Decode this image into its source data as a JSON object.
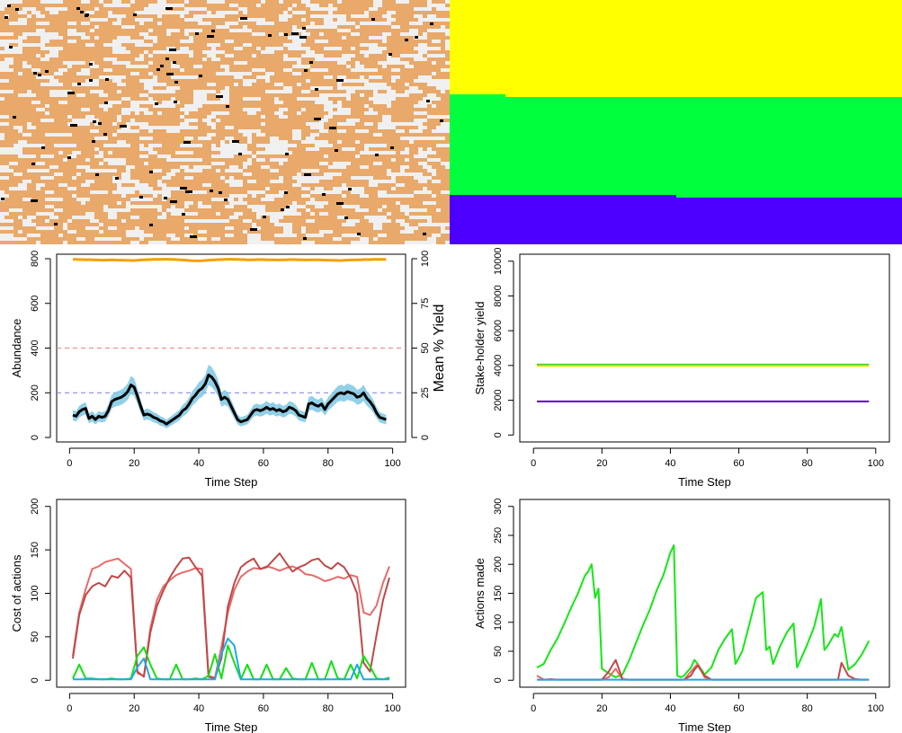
{
  "colors": {
    "land_tan": "#E8A96A",
    "land_white": "#F0F0F0",
    "resource_black": "#000000",
    "owner1": "#FFFF00",
    "owner2": "#00FF3C",
    "owner3": "#4B00FF",
    "abundance_line": "#000000",
    "abundance_ci": "#7EC8E3",
    "yield_line": "#F5A000",
    "upper_threshold": "#F08080",
    "lower_threshold": "#7A7AE0"
  },
  "chart_data": [
    {
      "type": "line",
      "panel": "population",
      "xlabel": "Time Step",
      "ylabel": "Abundance",
      "ylabel_right": "Mean % Yield",
      "xlim": [
        -4,
        104
      ],
      "ylim": [
        -20,
        820
      ],
      "ylim_right": [
        -2.5,
        102.5
      ],
      "xticks": [
        0,
        20,
        40,
        60,
        80,
        100
      ],
      "yticks": [
        0,
        200,
        400,
        600,
        800
      ],
      "yticks_right": [
        0,
        25,
        50,
        75,
        100
      ],
      "hlines": [
        {
          "y": 400,
          "color": "#F08080",
          "style": "dashed"
        },
        {
          "y": 200,
          "color": "#7A7AE0",
          "style": "dashed"
        }
      ],
      "x": [
        1,
        2,
        3,
        4,
        5,
        6,
        7,
        8,
        9,
        10,
        11,
        12,
        13,
        14,
        15,
        16,
        17,
        18,
        19,
        20,
        21,
        22,
        23,
        24,
        25,
        26,
        27,
        28,
        29,
        30,
        31,
        32,
        33,
        34,
        35,
        36,
        37,
        38,
        39,
        40,
        41,
        42,
        43,
        44,
        45,
        46,
        47,
        48,
        49,
        50,
        51,
        52,
        53,
        54,
        55,
        56,
        57,
        58,
        59,
        60,
        61,
        62,
        63,
        64,
        65,
        66,
        67,
        68,
        69,
        70,
        71,
        72,
        73,
        74,
        75,
        76,
        77,
        78,
        79,
        80,
        81,
        82,
        83,
        84,
        85,
        86,
        87,
        88,
        89,
        90,
        91,
        92,
        93,
        94,
        95,
        96,
        97,
        98
      ],
      "series": [
        {
          "name": "Abundance",
          "axis": "left",
          "color": "#000000",
          "values": [
            100,
            95,
            115,
            125,
            130,
            85,
            95,
            80,
            95,
            90,
            95,
            120,
            160,
            170,
            175,
            180,
            190,
            205,
            235,
            225,
            185,
            140,
            100,
            105,
            100,
            90,
            85,
            75,
            70,
            60,
            70,
            80,
            90,
            100,
            120,
            130,
            150,
            175,
            190,
            210,
            220,
            240,
            280,
            270,
            250,
            220,
            170,
            180,
            170,
            140,
            110,
            80,
            70,
            75,
            80,
            100,
            120,
            125,
            120,
            125,
            135,
            125,
            130,
            120,
            125,
            115,
            120,
            135,
            130,
            120,
            100,
            95,
            90,
            150,
            155,
            145,
            140,
            150,
            125,
            150,
            165,
            180,
            195,
            200,
            195,
            205,
            200,
            195,
            180,
            185,
            200,
            175,
            160,
            140,
            110,
            90,
            85,
            80
          ]
        },
        {
          "name": "Mean % Yield",
          "axis": "right",
          "color": "#F5A000",
          "values": [
            99.6,
            99.6,
            99.5,
            99.5,
            99.4,
            99.5,
            99.4,
            99.3,
            99.3,
            99.2,
            99.2,
            99.3,
            99.4,
            99.3,
            99.2,
            99.2,
            99.1,
            99.1,
            99.0,
            99.0,
            99.1,
            99.3,
            99.4,
            99.5,
            99.5,
            99.6,
            99.6,
            99.6,
            99.7,
            99.7,
            99.6,
            99.6,
            99.5,
            99.4,
            99.3,
            99.2,
            99.0,
            98.9,
            98.8,
            98.8,
            98.9,
            99.0,
            99.2,
            99.3,
            99.4,
            99.5,
            99.5,
            99.6,
            99.7,
            99.7,
            99.6,
            99.6,
            99.5,
            99.5,
            99.4,
            99.4,
            99.4,
            99.5,
            99.5,
            99.5,
            99.4,
            99.4,
            99.4,
            99.3,
            99.3,
            99.4,
            99.4,
            99.5,
            99.5,
            99.5,
            99.4,
            99.4,
            99.3,
            99.3,
            99.4,
            99.4,
            99.4,
            99.3,
            99.2,
            99.2,
            99.1,
            99.1,
            99.0,
            99.0,
            99.1,
            99.2,
            99.3,
            99.3,
            99.4,
            99.4,
            99.5,
            99.5,
            99.5,
            99.6,
            99.6,
            99.6,
            99.6,
            99.6
          ]
        }
      ]
    },
    {
      "type": "line",
      "panel": "stakeholder_yield",
      "xlabel": "Time Step",
      "ylabel": "Stake-holder yield",
      "xlim": [
        -4,
        104
      ],
      "ylim": [
        -400,
        10400
      ],
      "xticks": [
        0,
        20,
        40,
        60,
        80,
        100
      ],
      "yticks": [
        0,
        2000,
        4000,
        6000,
        8000,
        10000
      ],
      "x": [
        1,
        98
      ],
      "series": [
        {
          "name": "",
          "color": "#2ED12E",
          "values": [
            4050,
            4050
          ]
        },
        {
          "name": "",
          "color": "#E0E000",
          "values": [
            3980,
            3980
          ]
        },
        {
          "name": "",
          "color": "#5A10C8",
          "values": [
            1930,
            1930
          ]
        }
      ]
    },
    {
      "type": "line",
      "panel": "cost_of_actions",
      "xlabel": "Time Step",
      "ylabel": "Cost of actions",
      "xlim": [
        -4,
        104
      ],
      "ylim": [
        -8,
        208
      ],
      "xticks": [
        0,
        20,
        40,
        60,
        80,
        100
      ],
      "yticks": [
        0,
        50,
        100,
        150,
        200
      ],
      "x": [
        1,
        3,
        5,
        7,
        9,
        11,
        13,
        15,
        17,
        19,
        21,
        23,
        25,
        27,
        29,
        31,
        33,
        35,
        37,
        39,
        41,
        43,
        45,
        47,
        49,
        51,
        53,
        55,
        57,
        59,
        61,
        63,
        65,
        67,
        69,
        71,
        73,
        75,
        77,
        79,
        81,
        83,
        85,
        87,
        89,
        91,
        93,
        95,
        97,
        99
      ],
      "series": [
        {
          "name": "",
          "color": "#E86A6A",
          "values": [
            28,
            78,
            105,
            128,
            131,
            136,
            138,
            140,
            134,
            128,
            8,
            5,
            60,
            92,
            108,
            115,
            121,
            124,
            126,
            129,
            128,
            5,
            3,
            38,
            78,
            104,
            119,
            125,
            129,
            128,
            131,
            129,
            126,
            129,
            131,
            128,
            122,
            121,
            118,
            114,
            116,
            119,
            117,
            121,
            119,
            78,
            75,
            86,
            112,
            131
          ]
        },
        {
          "name": "",
          "color": "#C04848",
          "values": [
            25,
            75,
            98,
            108,
            112,
            108,
            120,
            118,
            126,
            118,
            10,
            4,
            55,
            85,
            103,
            118,
            130,
            140,
            141,
            130,
            120,
            4,
            2,
            25,
            85,
            112,
            130,
            136,
            140,
            128,
            130,
            138,
            146,
            135,
            125,
            130,
            133,
            138,
            140,
            132,
            128,
            135,
            130,
            118,
            100,
            20,
            10,
            52,
            92,
            118
          ]
        },
        {
          "name": "",
          "color": "#14E014",
          "values": [
            2,
            18,
            2,
            2,
            1,
            1,
            2,
            1,
            1,
            2,
            28,
            38,
            18,
            2,
            1,
            1,
            18,
            1,
            1,
            2,
            1,
            5,
            30,
            2,
            40,
            20,
            1,
            18,
            1,
            1,
            18,
            1,
            1,
            14,
            2,
            1,
            1,
            20,
            1,
            1,
            22,
            2,
            1,
            18,
            2,
            28,
            16,
            2,
            1,
            3
          ]
        },
        {
          "name": "",
          "color": "#1EA8E8",
          "values": [
            1,
            1,
            1,
            1,
            1,
            1,
            1,
            1,
            1,
            1,
            15,
            25,
            1,
            1,
            1,
            1,
            1,
            1,
            1,
            1,
            1,
            1,
            1,
            30,
            48,
            40,
            1,
            1,
            1,
            1,
            1,
            1,
            1,
            1,
            1,
            1,
            1,
            1,
            1,
            1,
            1,
            1,
            1,
            1,
            18,
            1,
            1,
            1,
            1,
            1
          ]
        }
      ]
    },
    {
      "type": "line",
      "panel": "actions_made",
      "xlabel": "Time Step",
      "ylabel": "Actions made",
      "xlim": [
        -4,
        104
      ],
      "ylim": [
        -12,
        312
      ],
      "xticks": [
        0,
        20,
        40,
        60,
        80,
        100
      ],
      "yticks": [
        0,
        50,
        100,
        150,
        200,
        250,
        300
      ],
      "x": [
        1,
        3,
        5,
        7,
        9,
        11,
        13,
        15,
        16,
        17,
        18,
        19,
        20,
        22,
        24,
        26,
        28,
        30,
        32,
        34,
        36,
        38,
        40,
        41,
        42,
        43,
        44,
        46,
        47,
        48,
        50,
        52,
        54,
        56,
        58,
        59,
        61,
        63,
        65,
        67,
        68,
        69,
        70,
        72,
        74,
        76,
        77,
        78,
        80,
        82,
        84,
        85,
        86,
        88,
        89,
        90,
        92,
        94,
        96,
        98
      ],
      "series": [
        {
          "name": "",
          "color": "#14E814",
          "values": [
            22,
            28,
            52,
            72,
            98,
            125,
            150,
            180,
            188,
            200,
            142,
            158,
            20,
            12,
            5,
            10,
            35,
            65,
            95,
            122,
            155,
            182,
            220,
            233,
            8,
            5,
            8,
            22,
            35,
            28,
            10,
            22,
            52,
            72,
            88,
            28,
            50,
            95,
            142,
            152,
            52,
            58,
            28,
            58,
            82,
            98,
            22,
            35,
            62,
            92,
            140,
            52,
            60,
            80,
            75,
            92,
            18,
            28,
            45,
            68
          ]
        },
        {
          "name": "",
          "color": "#E86A6A",
          "values": [
            8,
            1,
            2,
            1,
            1,
            1,
            1,
            1,
            1,
            1,
            1,
            1,
            1,
            5,
            20,
            1,
            1,
            1,
            1,
            1,
            1,
            1,
            1,
            1,
            1,
            1,
            1,
            15,
            22,
            28,
            5,
            1,
            1,
            1,
            1,
            1,
            1,
            1,
            1,
            1,
            1,
            1,
            1,
            1,
            1,
            1,
            1,
            1,
            1,
            1,
            1,
            1,
            1,
            1,
            1,
            1,
            1,
            1,
            1,
            1
          ]
        },
        {
          "name": "",
          "color": "#C04848",
          "values": [
            1,
            1,
            1,
            1,
            1,
            1,
            1,
            1,
            1,
            1,
            1,
            1,
            1,
            15,
            35,
            2,
            1,
            1,
            1,
            1,
            1,
            1,
            1,
            1,
            1,
            1,
            1,
            8,
            18,
            25,
            8,
            1,
            1,
            1,
            1,
            1,
            1,
            1,
            1,
            1,
            1,
            1,
            1,
            1,
            1,
            1,
            1,
            1,
            1,
            1,
            1,
            1,
            1,
            1,
            1,
            30,
            8,
            2,
            1,
            1
          ]
        },
        {
          "name": "",
          "color": "#1EA8E8",
          "values": [
            1,
            1,
            1,
            1,
            1,
            1,
            1,
            1,
            1,
            1,
            1,
            1,
            1,
            1,
            1,
            1,
            1,
            1,
            1,
            1,
            1,
            1,
            1,
            1,
            1,
            1,
            1,
            1,
            1,
            1,
            1,
            1,
            1,
            1,
            1,
            1,
            1,
            1,
            1,
            1,
            1,
            1,
            1,
            1,
            1,
            1,
            1,
            1,
            1,
            1,
            1,
            1,
            1,
            1,
            1,
            1,
            1,
            1,
            1,
            1
          ]
        }
      ]
    }
  ]
}
